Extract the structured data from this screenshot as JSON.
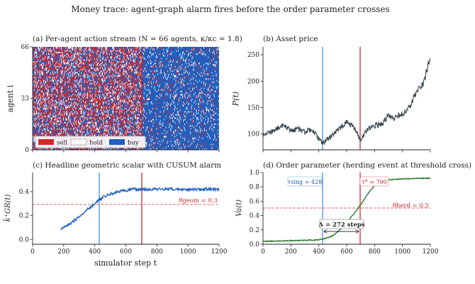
{
  "figure": {
    "suptitle": "Money trace: agent-graph alarm fires before the order parameter crosses",
    "colors": {
      "sell": "#d62728",
      "hold": "#f7f7f7",
      "buy": "#1f5fbf",
      "price": "#37474f",
      "scalar": "#1f5fbf",
      "order": "#2e7d32",
      "alarm_line": "#4a90d9",
      "cross_line": "#c62828",
      "threshold": "#e06666"
    },
    "markers": {
      "tau_sing": 428,
      "tau_star": 700
    }
  },
  "chart_data": [
    {
      "type": "heatmap",
      "title": "(a) Per-agent action stream  (N = 66 agents, κ/κc = 1.8)",
      "xlabel": "",
      "ylabel": "agent i",
      "xlim": [
        0,
        1200
      ],
      "ylim": [
        0,
        66
      ],
      "yticks": [
        0,
        33,
        66
      ],
      "legend": [
        "sell",
        "hold",
        "buy"
      ],
      "legend_position": "bottom-left",
      "regimes": [
        {
          "x_range": [
            0,
            700
          ],
          "sell": 0.4,
          "hold": 0.2,
          "buy": 0.4
        },
        {
          "x_range": [
            700,
            1200
          ],
          "sell": 0.08,
          "hold": 0.1,
          "buy": 0.82
        }
      ]
    },
    {
      "type": "line",
      "title": "(b) Asset price",
      "xlabel": "",
      "ylabel": "P(t)",
      "xlim": [
        0,
        1200
      ],
      "ylim": [
        70,
        265
      ],
      "yticks": [
        100,
        150,
        200,
        250
      ],
      "series": [
        {
          "x": [
            0,
            50,
            100,
            150,
            200,
            250,
            300,
            350,
            400,
            428,
            450,
            500,
            550,
            600,
            650,
            700,
            750,
            800,
            850,
            900,
            950,
            1000,
            1050,
            1100,
            1150,
            1170,
            1200
          ],
          "values": [
            100,
            103,
            110,
            115,
            106,
            110,
            103,
            110,
            90,
            82,
            86,
            100,
            110,
            122,
            114,
            88,
            110,
            116,
            118,
            135,
            130,
            138,
            150,
            180,
            195,
            215,
            250
          ]
        }
      ]
    },
    {
      "type": "line",
      "title": "(c) Headline geometric scalar with CUSUM alarm",
      "xlabel": "simulator step t",
      "ylabel": "k̄⁺GR(t)",
      "xlim": [
        0,
        1200
      ],
      "ylim": [
        -0.04,
        0.56
      ],
      "yticks": [
        0.0,
        0.2,
        0.4
      ],
      "threshold": {
        "value": 0.3,
        "label": "θgeom = 0.3"
      },
      "series": [
        {
          "x": [
            180,
            200,
            250,
            300,
            350,
            400,
            428,
            450,
            500,
            550,
            600,
            650,
            700,
            750,
            800,
            900,
            1000,
            1100,
            1200
          ],
          "values": [
            0.08,
            0.1,
            0.14,
            0.19,
            0.25,
            0.3,
            0.33,
            0.35,
            0.38,
            0.4,
            0.41,
            0.42,
            0.42,
            0.42,
            0.42,
            0.42,
            0.42,
            0.42,
            0.42
          ]
        }
      ]
    },
    {
      "type": "line",
      "title": "(d) Order parameter (herding event at threshold cross)",
      "xlabel": "",
      "ylabel": "Va(t)",
      "xlim": [
        0,
        1200
      ],
      "ylim": [
        0,
        1.0
      ],
      "yticks": [
        0.0,
        0.2,
        0.4,
        0.6,
        0.8,
        1.0
      ],
      "threshold": {
        "value": 0.5,
        "label": "θherd = 0.5"
      },
      "annotations": {
        "tau_sing": "τsing = 428",
        "tau_star": "τ* = 700",
        "delta": "Δ = 272 steps"
      },
      "series": [
        {
          "x": [
            0,
            100,
            200,
            300,
            400,
            450,
            500,
            550,
            600,
            650,
            700,
            750,
            800,
            850,
            900,
            1000,
            1100,
            1200
          ],
          "values": [
            0.04,
            0.045,
            0.05,
            0.055,
            0.06,
            0.08,
            0.12,
            0.2,
            0.3,
            0.42,
            0.55,
            0.7,
            0.82,
            0.88,
            0.9,
            0.91,
            0.92,
            0.92
          ]
        }
      ]
    }
  ],
  "xticks": [
    0,
    200,
    400,
    600,
    800,
    1000,
    1200
  ]
}
